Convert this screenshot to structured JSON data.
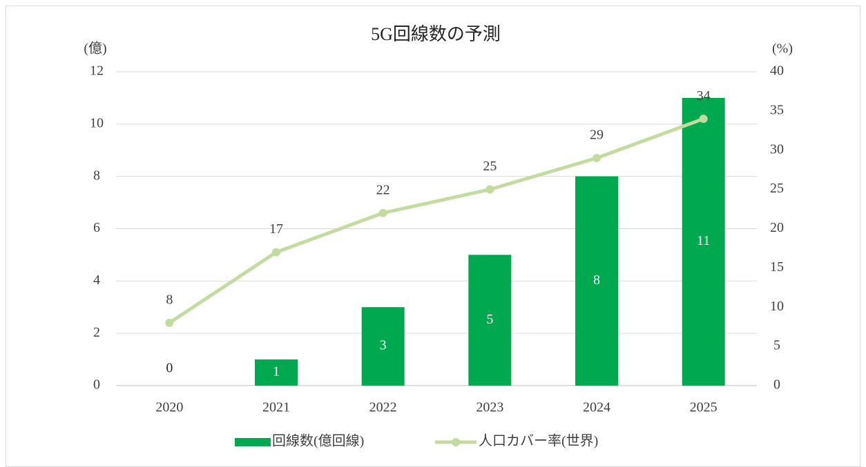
{
  "chart_data": {
    "type": "bar",
    "title": "5G回線数の予測",
    "y_label": "(億)",
    "y2_label": "(%)",
    "categories": [
      "2020",
      "2021",
      "2022",
      "2023",
      "2024",
      "2025"
    ],
    "series": [
      {
        "name": "回線数(億回線)",
        "type": "bar",
        "color": "#00a84f",
        "values": [
          0,
          1,
          3,
          5,
          8,
          11
        ]
      },
      {
        "name": "人口カバー率(世界)",
        "type": "line",
        "axis": "y2",
        "color": "#c4dba0",
        "values": [
          8,
          17,
          22,
          25,
          29,
          34
        ]
      }
    ],
    "ylim": [
      0,
      12
    ],
    "yticks": [
      0,
      2,
      4,
      6,
      8,
      10,
      12
    ],
    "y2lim": [
      0,
      40
    ],
    "y2ticks": [
      0,
      5,
      10,
      15,
      20,
      25,
      30,
      35,
      40
    ],
    "grid": true
  }
}
